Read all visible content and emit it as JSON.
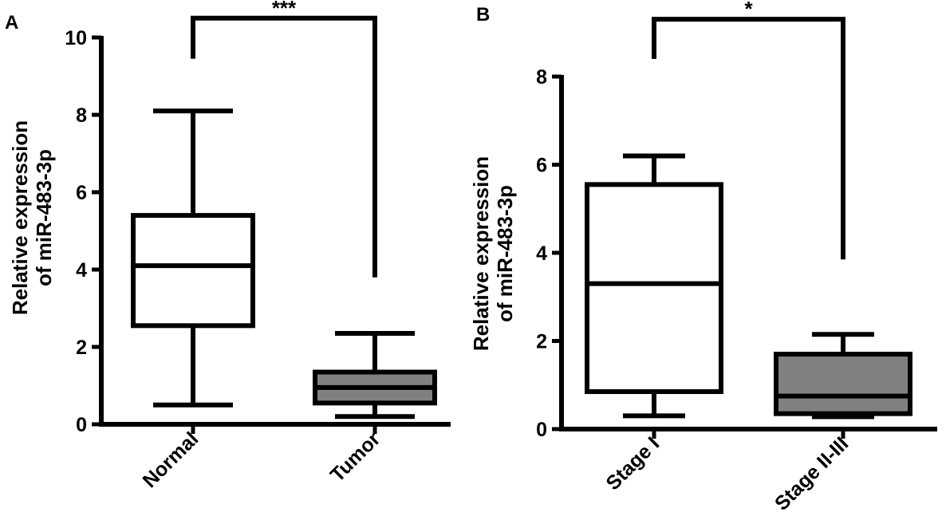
{
  "colors": {
    "stroke": "#000000",
    "normal_fill": "#ffffff",
    "tumor_fill": "#808080"
  },
  "chart_data": [
    {
      "panel_label": "A",
      "type": "box",
      "ylabel_line1": "Relative expression",
      "ylabel_line2": "of miR-483-3p",
      "ylim": [
        0,
        10
      ],
      "yticks": [
        "0",
        "2",
        "4",
        "6",
        "8",
        "10"
      ],
      "categories": [
        "Normal",
        "Tumor"
      ],
      "boxes": [
        {
          "category": "Normal",
          "min": 0.5,
          "q1": 2.55,
          "median": 4.1,
          "q3": 5.4,
          "max": 8.1,
          "fill": "white"
        },
        {
          "category": "Tumor",
          "min": 0.2,
          "q1": 0.55,
          "median": 0.95,
          "q3": 1.35,
          "max": 2.35,
          "fill": "gray"
        }
      ],
      "significance": {
        "label": "***",
        "left_end": 9.45,
        "right_end": 3.8,
        "top": 10.5
      }
    },
    {
      "panel_label": "B",
      "type": "box",
      "ylabel_line1": "Relative expression",
      "ylabel_line2": "of miR-483-3p",
      "ylim": [
        0,
        8
      ],
      "yticks": [
        "0",
        "2",
        "4",
        "6",
        "8"
      ],
      "categories": [
        "Stage I",
        "Stage II-III"
      ],
      "boxes": [
        {
          "category": "Stage I",
          "min": 0.3,
          "q1": 0.85,
          "median": 3.3,
          "q3": 5.55,
          "max": 6.2,
          "fill": "white"
        },
        {
          "category": "Stage II-III",
          "min": 0.28,
          "q1": 0.35,
          "median": 0.75,
          "q3": 1.7,
          "max": 2.15,
          "fill": "gray"
        }
      ],
      "significance": {
        "label": "*",
        "left_end": 8.4,
        "right_end": 3.85,
        "top": 9.3
      }
    }
  ]
}
